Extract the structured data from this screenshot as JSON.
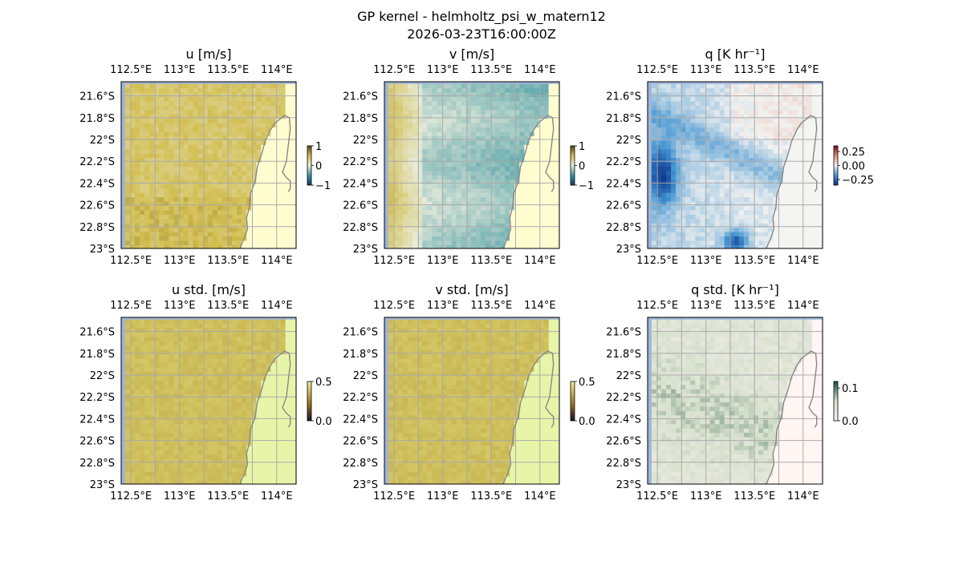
{
  "figure": {
    "title": "GP kernel - helmholtz_psi_w_matern12",
    "subtitle": "2026-03-23T16:00:00Z"
  },
  "colors": {
    "ocean": "#9fb4d8",
    "land": "#fffdd0",
    "land_std": "#e8f5a8",
    "coast": "#888888",
    "grid": "#aaaaaa"
  },
  "chart_data": [
    {
      "type": "heatmap",
      "title": "u [m/s]",
      "field": "u",
      "colormap": "diverging-brown-teal",
      "xlabel": "",
      "ylabel": "",
      "x_ticks": [
        "112.5°E",
        "113°E",
        "113.5°E",
        "114°E"
      ],
      "y_ticks": [
        "21.6°S",
        "21.8°S",
        "22°S",
        "22.2°S",
        "22.4°S",
        "22.6°S",
        "22.8°S",
        "23°S"
      ],
      "xlim": [
        112.4,
        114.2
      ],
      "ylim": [
        -23.0,
        -21.47
      ],
      "colorbar": {
        "ticks": [
          "1",
          "0",
          "−1"
        ],
        "range": [
          -1,
          1
        ]
      }
    },
    {
      "type": "heatmap",
      "title": "v [m/s]",
      "field": "v",
      "colormap": "diverging-brown-teal",
      "xlabel": "",
      "ylabel": "",
      "x_ticks": [
        "112.5°E",
        "113°E",
        "113.5°E",
        "114°E"
      ],
      "y_ticks": [
        "21.6°S",
        "21.8°S",
        "22°S",
        "22.2°S",
        "22.4°S",
        "22.6°S",
        "22.8°S",
        "23°S"
      ],
      "xlim": [
        112.4,
        114.2
      ],
      "ylim": [
        -23.0,
        -21.47
      ],
      "colorbar": {
        "ticks": [
          "1",
          "0",
          "−1"
        ],
        "range": [
          -1,
          1
        ]
      }
    },
    {
      "type": "heatmap",
      "title": "q [K hr⁻¹]",
      "field": "q",
      "colormap": "diverging-red-blue",
      "xlabel": "",
      "ylabel": "",
      "x_ticks": [
        "112.5°E",
        "113°E",
        "113.5°E",
        "114°E"
      ],
      "y_ticks": [
        "21.6°S",
        "21.8°S",
        "22°S",
        "22.2°S",
        "22.4°S",
        "22.6°S",
        "22.8°S",
        "23°S"
      ],
      "xlim": [
        112.4,
        114.2
      ],
      "ylim": [
        -23.0,
        -21.47
      ],
      "colorbar": {
        "ticks": [
          "0.25",
          "0.00",
          "−0.25"
        ],
        "range": [
          -0.35,
          0.35
        ]
      }
    },
    {
      "type": "heatmap",
      "title": "u std. [m/s]",
      "field": "u_std",
      "colormap": "sequential-yellow",
      "xlabel": "",
      "ylabel": "",
      "x_ticks": [
        "112.5°E",
        "113°E",
        "113.5°E",
        "114°E"
      ],
      "y_ticks": [
        "21.6°S",
        "21.8°S",
        "22°S",
        "22.2°S",
        "22.4°S",
        "22.6°S",
        "22.8°S",
        "23°S"
      ],
      "xlim": [
        112.4,
        114.2
      ],
      "ylim": [
        -23.0,
        -21.47
      ],
      "colorbar": {
        "ticks": [
          "0.5",
          "0.0"
        ],
        "range": [
          0,
          0.5
        ]
      }
    },
    {
      "type": "heatmap",
      "title": "v std. [m/s]",
      "field": "v_std",
      "colormap": "sequential-yellow",
      "xlabel": "",
      "ylabel": "",
      "x_ticks": [
        "112.5°E",
        "113°E",
        "113.5°E",
        "114°E"
      ],
      "y_ticks": [
        "21.6°S",
        "21.8°S",
        "22°S",
        "22.2°S",
        "22.4°S",
        "22.6°S",
        "22.8°S",
        "23°S"
      ],
      "xlim": [
        112.4,
        114.2
      ],
      "ylim": [
        -23.0,
        -21.47
      ],
      "colorbar": {
        "ticks": [
          "0.5",
          "0.0"
        ],
        "range": [
          0,
          0.5
        ]
      }
    },
    {
      "type": "heatmap",
      "title": "q std. [K hr⁻¹]",
      "field": "q_std",
      "colormap": "sequential-pink-green",
      "xlabel": "",
      "ylabel": "",
      "x_ticks": [
        "112.5°E",
        "113°E",
        "113.5°E",
        "114°E"
      ],
      "y_ticks": [
        "21.6°S",
        "21.8°S",
        "22°S",
        "22.2°S",
        "22.4°S",
        "22.6°S",
        "22.8°S",
        "23°S"
      ],
      "xlim": [
        112.4,
        114.2
      ],
      "ylim": [
        -23.0,
        -21.47
      ],
      "colorbar": {
        "ticks": [
          "0.1",
          "0.0"
        ],
        "range": [
          0,
          0.12
        ]
      }
    }
  ]
}
